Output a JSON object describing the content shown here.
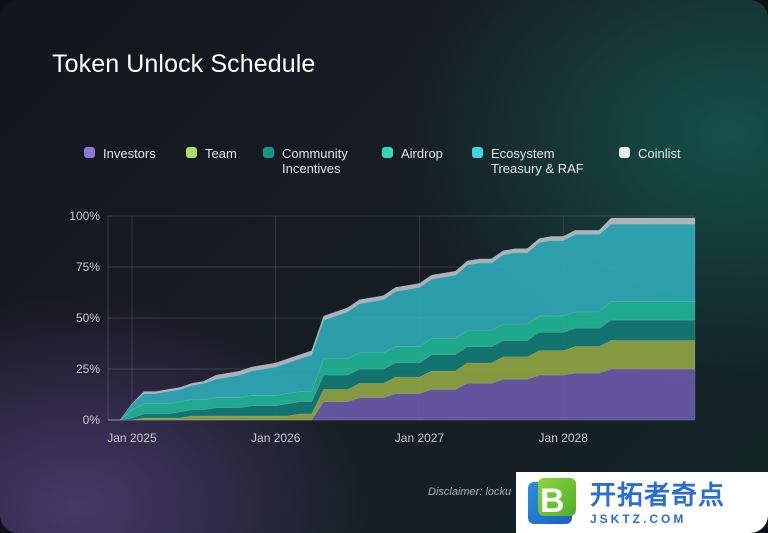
{
  "title": "Token Unlock Schedule",
  "legend": [
    {
      "label": "Investors",
      "color": "#8a76d9"
    },
    {
      "label": "Team",
      "color": "#b5d86a"
    },
    {
      "label": "Community\nIncentives",
      "color": "#14958a"
    },
    {
      "label": "Airdrop",
      "color": "#2fd8b3"
    },
    {
      "label": "Ecosystem\nTreasury & RAF",
      "color": "#3fd3e0"
    },
    {
      "label": "Coinlist",
      "color": "#e8ecef"
    }
  ],
  "disclaimer": "Disclaimer: locku",
  "logo": {
    "cn": "开拓者奇点",
    "en": "JSKTZ.COM",
    "letter": "B"
  },
  "chart_data": {
    "type": "area",
    "stacked": true,
    "x_tick_labels": [
      "Jan 2025",
      "Jan 2026",
      "Jan 2027",
      "Jan 2028"
    ],
    "y_tick_labels": [
      "0%",
      "25%",
      "50%",
      "75%",
      "100%"
    ],
    "ylim": [
      0,
      100
    ],
    "grid": true,
    "x": [
      "2024-11",
      "2024-12",
      "2025-01",
      "2025-02",
      "2025-03",
      "2025-04",
      "2025-05",
      "2025-06",
      "2025-07",
      "2025-08",
      "2025-09",
      "2025-10",
      "2025-11",
      "2025-12",
      "2026-01",
      "2026-02",
      "2026-03",
      "2026-04",
      "2026-05",
      "2026-06",
      "2026-07",
      "2026-08",
      "2026-09",
      "2026-10",
      "2026-11",
      "2026-12",
      "2027-01",
      "2027-02",
      "2027-03",
      "2027-04",
      "2027-05",
      "2027-06",
      "2027-07",
      "2027-08",
      "2027-09",
      "2027-10",
      "2027-11",
      "2027-12",
      "2028-01",
      "2028-02",
      "2028-03",
      "2028-04",
      "2028-05",
      "2028-06",
      "2028-07",
      "2028-08",
      "2028-09",
      "2028-10",
      "2028-11",
      "2028-12"
    ],
    "series": [
      {
        "name": "Investors",
        "color": "#6a5aa8",
        "values": [
          0,
          0,
          0,
          0,
          0,
          0,
          0,
          0,
          0,
          0,
          0,
          0,
          0,
          0,
          0,
          0,
          0,
          0,
          9,
          9,
          9,
          11,
          11,
          11,
          13,
          13,
          13,
          15,
          15,
          15,
          18,
          18,
          18,
          20,
          20,
          20,
          22,
          22,
          22,
          23,
          23,
          23,
          25,
          25,
          25,
          25,
          25,
          25,
          25,
          25
        ]
      },
      {
        "name": "Team",
        "color": "#8ea443",
        "values": [
          0,
          0,
          0,
          1,
          1,
          1,
          1,
          2,
          2,
          2,
          2,
          2,
          2,
          2,
          2,
          2,
          3,
          3,
          6,
          6,
          6,
          7,
          7,
          7,
          8,
          8,
          8,
          9,
          9,
          9,
          10,
          10,
          10,
          11,
          11,
          11,
          12,
          12,
          12,
          13,
          13,
          13,
          14,
          14,
          14,
          14,
          14,
          14,
          14,
          14
        ]
      },
      {
        "name": "Community Incentives",
        "color": "#127a74",
        "values": [
          0,
          0,
          1,
          2,
          2,
          2,
          3,
          3,
          3,
          4,
          4,
          4,
          5,
          5,
          5,
          6,
          6,
          6,
          7,
          7,
          7,
          7,
          7,
          7,
          7,
          7,
          7,
          8,
          8,
          8,
          8,
          8,
          8,
          8,
          8,
          8,
          9,
          9,
          9,
          9,
          9,
          9,
          10,
          10,
          10,
          10,
          10,
          10,
          10,
          10
        ]
      },
      {
        "name": "Airdrop",
        "color": "#1fb596",
        "values": [
          0,
          0,
          4,
          5,
          5,
          5,
          5,
          5,
          5,
          5,
          5,
          5,
          5,
          5,
          5,
          5,
          5,
          5,
          8,
          8,
          8,
          8,
          8,
          8,
          8,
          8,
          8,
          8,
          8,
          8,
          8,
          8,
          8,
          8,
          8,
          8,
          8,
          8,
          8,
          8,
          8,
          8,
          9,
          9,
          9,
          9,
          9,
          9,
          9,
          9
        ]
      },
      {
        "name": "Ecosystem Treasury & RAF",
        "color": "#2fa9b6",
        "values": [
          0,
          0,
          3,
          5,
          5,
          6,
          6,
          7,
          8,
          9,
          10,
          11,
          12,
          13,
          14,
          15,
          16,
          18,
          19,
          21,
          23,
          24,
          25,
          26,
          27,
          28,
          29,
          29,
          30,
          31,
          32,
          33,
          33,
          34,
          35,
          35,
          36,
          37,
          37,
          38,
          38,
          38,
          38,
          38,
          38,
          38,
          38,
          38,
          38,
          38
        ]
      },
      {
        "name": "Coinlist",
        "color": "#b9bec4",
        "values": [
          0,
          0,
          0,
          1,
          1,
          1,
          1,
          1,
          1,
          2,
          2,
          2,
          2,
          2,
          2,
          2,
          2,
          2,
          2,
          2,
          2,
          2,
          2,
          2,
          2,
          2,
          2,
          2,
          2,
          2,
          2,
          2,
          2,
          2,
          2,
          2,
          2,
          2,
          2,
          2,
          2,
          2,
          3,
          3,
          3,
          3,
          3,
          3,
          3,
          3
        ]
      }
    ]
  }
}
